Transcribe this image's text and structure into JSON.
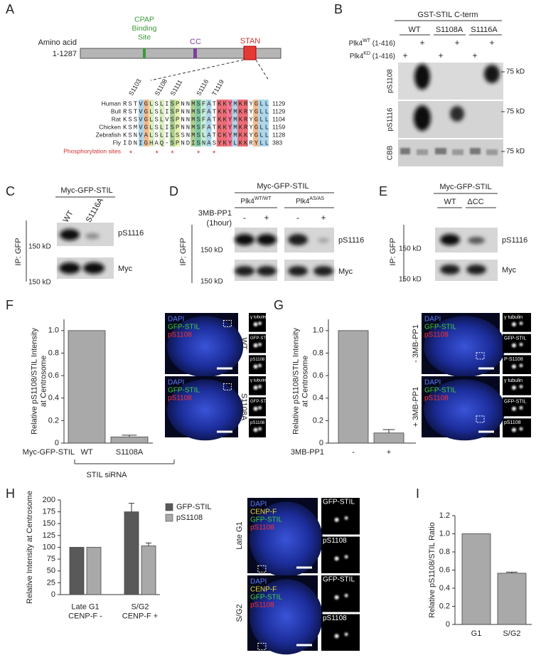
{
  "panels": {
    "A": {
      "label": "A",
      "axis_title": "Amino acid",
      "range": "1-1287",
      "domains": [
        "CPAP\nBinding\nSite",
        "CC",
        "STAN"
      ],
      "sites": [
        "S1103",
        "S1108",
        "S1111",
        "S1116",
        "T1119"
      ],
      "alignment": [
        {
          "species": "Human",
          "sequence": "RSTVGLSLISPNNMSFATKKYMKRYGLL",
          "end": 1129
        },
        {
          "species": "Bull",
          "sequence": "RSTVGLSLISPNNMSFATKKYMKRYGLL",
          "end": 1129
        },
        {
          "species": "Rat",
          "sequence": "KSSVGLSLVSPNNMSFATKKYMKRYGLL",
          "end": 1104
        },
        {
          "species": "Chicken",
          "sequence": "KSMVGLSLISPNNMSFATKKYMKRYGLL",
          "end": 1159
        },
        {
          "species": "Zebrafish",
          "sequence": "KSNVALSLILSSNMSLATCKYMKKYGLL",
          "end": 1128
        },
        {
          "species": "Fly",
          "sequence": "IDNIGHAQ-SPNDISNASYKYLKKRYLL",
          "end": 383
        }
      ],
      "phospho_label": "Phosphorylation sites",
      "phospho_marks": [
        "*",
        "*",
        "*",
        "*",
        "*"
      ]
    },
    "B": {
      "label": "B",
      "header": "GST-STIL C-term",
      "lanes": [
        "WT",
        "S1108A",
        "S1116A"
      ],
      "rows": [
        {
          "name": "Plk4",
          "sup": "WT",
          "suffix": " (1-416)",
          "marks": [
            "+",
            "+",
            "+"
          ]
        },
        {
          "name": "Plk4",
          "sup": "KD",
          "suffix": " (1-416)",
          "marks": [
            "+",
            "+",
            "+"
          ]
        }
      ],
      "blots": [
        "pS1108",
        "pS1116",
        "CBB"
      ],
      "markers": [
        "75 kD",
        "75 kD",
        "75 kD"
      ]
    },
    "C": {
      "label": "C",
      "header": "Myc-GFP-STIL",
      "lanes": [
        "WT",
        "S1116A"
      ],
      "blots": [
        "pS1116",
        "Myc"
      ],
      "markers": [
        "150 kD",
        "150 kD"
      ],
      "ip": "IP: GFP"
    },
    "D": {
      "label": "D",
      "header": "Myc-GFP-STIL",
      "genotypes": [
        {
          "name": "Plk4",
          "sup": "WT/WT"
        },
        {
          "name": "Plk4",
          "sup": "AS/AS"
        }
      ],
      "drug": "3MB-PP1",
      "duration": "(1hour)",
      "signs": [
        "-",
        "+",
        "-",
        "+"
      ],
      "blots": [
        "pS1116",
        "Myc"
      ],
      "markers": [
        "150 kD",
        "150 kD"
      ],
      "ip": "IP: GFP"
    },
    "E": {
      "label": "E",
      "header": "Myc-GFP-STIL",
      "lanes": [
        "WT",
        "ΔCC"
      ],
      "blots": [
        "pS1116",
        "Myc"
      ],
      "markers": [
        "150 kD",
        "150 kD"
      ],
      "ip": "IP: GFP"
    },
    "F_images": [
      {
        "row": "WT",
        "stains": [
          "DAPI",
          "GFP-STIL",
          "pS1108"
        ],
        "insets": [
          "γ tubulin",
          "GFP-STIL",
          "pS1108"
        ]
      },
      {
        "row": "S1108A",
        "stains": [
          "DAPI",
          "GFP-STIL",
          "pS1108"
        ],
        "insets": [
          "γ tubulin",
          "GFP-STIL",
          "pS1108"
        ]
      }
    ],
    "G_images": [
      {
        "row": "- 3MB-PP1",
        "stains": [
          "DAPI",
          "GFP-STIL",
          "pS1108"
        ],
        "insets": [
          "γ tubulin",
          "GFP-STIL",
          "P-S1108"
        ]
      },
      {
        "row": "+ 3MB-PP1",
        "stains": [
          "DAPI",
          "GFP-STIL",
          "pS1108"
        ],
        "insets": [
          "γ tubulin",
          "GFP-STIL",
          "pS1108"
        ]
      }
    ],
    "H_images": [
      {
        "row": "Late G1",
        "stains": [
          "DAPI",
          "CENP-F",
          "GFP-STIL",
          "pS1108"
        ],
        "insets": [
          "GFP-STIL",
          "pS1108"
        ]
      },
      {
        "row": "S/G2",
        "stains": [
          "DAPI",
          "CENP-F",
          "GFP-STIL",
          "pS1108"
        ],
        "insets": [
          "GFP-STIL",
          "pS1108"
        ]
      }
    ]
  },
  "chart_data": [
    {
      "type": "bar",
      "label": "F",
      "ylabel": "Relative pS1108/STIL Intensity\nat Centrosome",
      "categories": [
        "WT",
        "S1108A"
      ],
      "values": [
        1,
        0.055
      ],
      "errors": [
        null,
        0.015
      ],
      "color": "#a9a9a9",
      "xlabel": "Myc-GFP-STIL",
      "group_label": "STIL siRNA",
      "ylim": [
        0,
        1.1
      ],
      "yticks": [
        0,
        0.2,
        0.4,
        0.6,
        0.8,
        {
          "value": 1,
          "label": "1.0"
        }
      ]
    },
    {
      "type": "bar",
      "label": "G",
      "ylabel": "Relative pS1108/STIL Intensity\nat Centrosome",
      "categories": [
        "-",
        "+"
      ],
      "values": [
        1,
        0.09
      ],
      "errors": [
        null,
        0.03
      ],
      "color": "#a9a9a9",
      "xlabel": "3MB-PP1",
      "ylim": [
        0,
        1.1
      ],
      "yticks": [
        0,
        0.2,
        0.4,
        0.6,
        0.8,
        {
          "value": 1,
          "label": "1.0"
        }
      ]
    },
    {
      "type": "bar",
      "label": "H",
      "ylabel": "Relative Intensity at Centrosome",
      "categories": [
        "Late G1\nCENP-F -",
        "S/G2\nCENP-F +"
      ],
      "series": [
        {
          "name": "GFP-STIL",
          "color": "#595959",
          "values": [
            100,
            175
          ],
          "errors": [
            null,
            18
          ]
        },
        {
          "name": "pS1108",
          "color": "#a9a9a9",
          "values": [
            100,
            103
          ],
          "errors": [
            null,
            6
          ]
        }
      ],
      "legend": "right",
      "ylim": [
        0,
        200
      ],
      "yticks": [
        0,
        25,
        50,
        75,
        100,
        125,
        150,
        175,
        200
      ]
    },
    {
      "type": "bar",
      "label": "I",
      "ylabel": "Relative pS1108/STIL Ratio",
      "categories": [
        "G1",
        "S/G2"
      ],
      "values": [
        1,
        0.565
      ],
      "errors": [
        null,
        0.012
      ],
      "color": "#a9a9a9",
      "ylim": [
        0,
        1.2
      ],
      "yticks": [
        0,
        0.2,
        0.4,
        0.6,
        0.8,
        {
          "value": 1,
          "label": "1.0"
        },
        1.2
      ]
    }
  ]
}
